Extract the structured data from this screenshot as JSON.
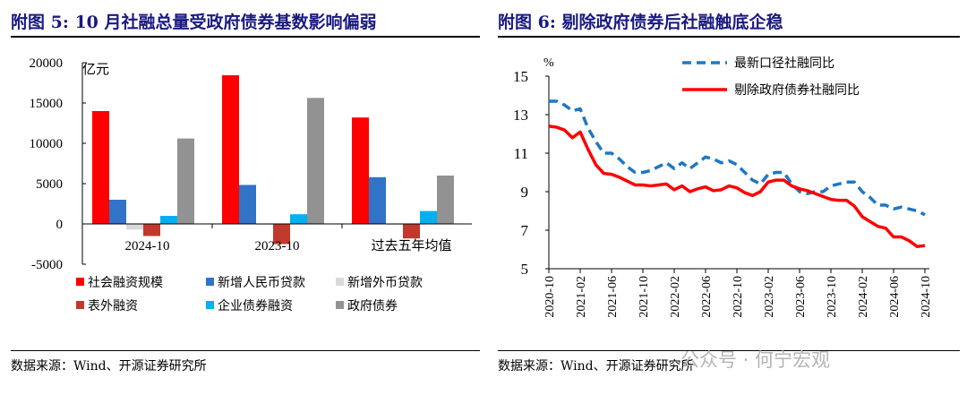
{
  "left": {
    "title": "附图 5:  10 月社融总量受政府债券基数影响偏弱",
    "source": "数据来源：Wind、开源证券研究所"
  },
  "right": {
    "title": "附图 6:  剔除政府债券后社融触底企稳",
    "source": "数据来源：Wind、开源证券研究所"
  },
  "watermark": "公众号 · 何宁宏观",
  "chart_data": [
    {
      "type": "bar",
      "ylabel": "亿元",
      "ylim": [
        -5000,
        20000
      ],
      "yticks": [
        -5000,
        0,
        5000,
        10000,
        15000,
        20000
      ],
      "categories": [
        "2024-10",
        "2023-10",
        "过去五年均值"
      ],
      "legend_placement": "bottom",
      "series": [
        {
          "name": "社会融资规模",
          "color": "#ff0000",
          "values": [
            14000,
            18441,
            13200
          ]
        },
        {
          "name": "新增人民币贷款",
          "color": "#3173c6",
          "values": [
            3000,
            4837,
            5800
          ]
        },
        {
          "name": "新增外币贷款",
          "color": "#d9d9d9",
          "values": [
            -700,
            -100,
            -100
          ]
        },
        {
          "name": "表外融资",
          "color": "#c0392b",
          "values": [
            -1500,
            -2500,
            -1800
          ]
        },
        {
          "name": "企业债券融资",
          "color": "#00b0f0",
          "values": [
            1000,
            1200,
            1600
          ]
        },
        {
          "name": "政府债券",
          "color": "#929292",
          "values": [
            10600,
            15632,
            6000
          ]
        }
      ]
    },
    {
      "type": "line",
      "ylabel": "%",
      "ylim": [
        5,
        15
      ],
      "yticks": [
        5,
        7,
        9,
        11,
        13,
        15
      ],
      "xticks": [
        "2020-10",
        "2021-02",
        "2021-06",
        "2021-10",
        "2022-02",
        "2022-06",
        "2022-10",
        "2023-02",
        "2023-06",
        "2023-10",
        "2024-02",
        "2024-06",
        "2024-10"
      ],
      "x_range": [
        "2020-10",
        "2024-10"
      ],
      "legend_placement": "top-right",
      "series": [
        {
          "name": "最新口径社融同比",
          "color": "#1f77c4",
          "style": "dashed",
          "values": [
            13.7,
            13.7,
            13.5,
            13.2,
            13.3,
            12.3,
            11.6,
            11.0,
            11.0,
            10.7,
            10.3,
            10.0,
            10.0,
            10.1,
            10.3,
            10.5,
            10.2,
            10.5,
            10.2,
            10.5,
            10.8,
            10.7,
            10.5,
            10.6,
            10.4,
            10.0,
            9.6,
            9.4,
            9.9,
            10.0,
            10.0,
            9.4,
            9.0,
            8.9,
            9.0,
            9.0,
            9.3,
            9.4,
            9.5,
            9.5,
            9.0,
            8.7,
            8.3,
            8.3,
            8.1,
            8.2,
            8.1,
            8.0,
            7.8
          ]
        },
        {
          "name": "剔除政府债券社融同比",
          "color": "#ff0000",
          "style": "solid",
          "values": [
            12.4,
            12.35,
            12.2,
            11.8,
            12.1,
            11.2,
            10.4,
            9.95,
            9.9,
            9.75,
            9.55,
            9.35,
            9.35,
            9.3,
            9.35,
            9.4,
            9.1,
            9.3,
            9.0,
            9.15,
            9.25,
            9.05,
            9.1,
            9.3,
            9.2,
            8.95,
            8.8,
            9.0,
            9.5,
            9.6,
            9.6,
            9.3,
            9.15,
            9.05,
            8.9,
            8.75,
            8.6,
            8.55,
            8.55,
            8.25,
            7.7,
            7.45,
            7.2,
            7.1,
            6.65,
            6.65,
            6.45,
            6.15,
            6.2
          ]
        }
      ]
    }
  ]
}
